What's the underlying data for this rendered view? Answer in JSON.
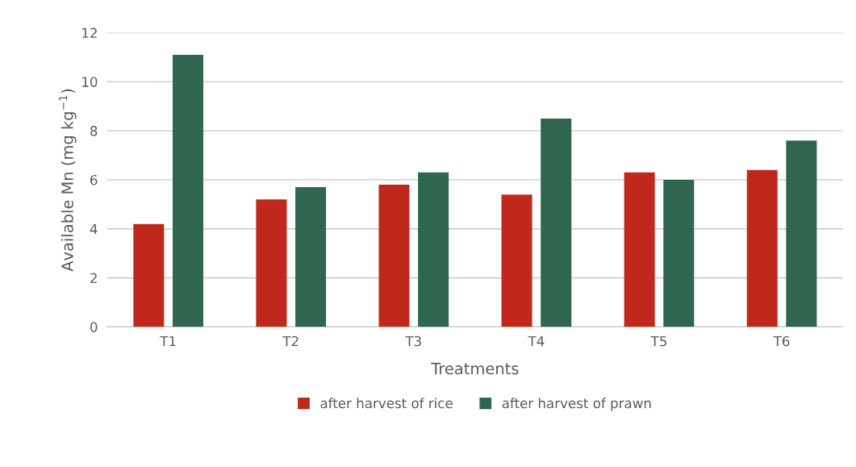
{
  "chart_data": {
    "type": "bar",
    "xlabel": "Treatments",
    "ylabel": "Available Mn (mg kg$^{−1}$)",
    "categories": [
      "T1",
      "T2",
      "T3",
      "T4",
      "T5",
      "T6"
    ],
    "series": [
      {
        "name": "after harvest of rice",
        "color": "#c0281c",
        "values": [
          4.2,
          5.2,
          5.8,
          5.4,
          6.3,
          6.4
        ]
      },
      {
        "name": "after harvest of prawn",
        "color": "#2e6650",
        "values": [
          11.1,
          5.7,
          6.3,
          8.5,
          6.0,
          7.6
        ]
      }
    ],
    "ylim": [
      0,
      12
    ],
    "yticks": [
      0,
      2,
      4,
      6,
      8,
      10,
      12
    ],
    "grid": "y",
    "legend": "bottom"
  }
}
